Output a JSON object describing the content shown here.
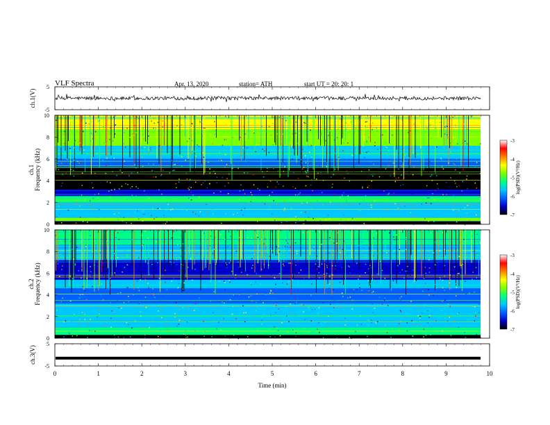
{
  "header": {
    "title": "VLF  Spectra",
    "date": "Apr. 13, 2020",
    "station": "station= ATH",
    "start": "start  UT  =    20: 20: 1"
  },
  "colors": {
    "spectrogram_base": "#00007a",
    "colormap": [
      "#000000",
      "#0000c8",
      "#0060ff",
      "#00c8ff",
      "#00ff80",
      "#80ff00",
      "#ffff00",
      "#ff8000",
      "#ff0000",
      "#ffffff"
    ]
  },
  "chart_data": [
    {
      "type": "line",
      "ylabel": "ch.1(V)",
      "ylim": [
        -5,
        5
      ],
      "yticks": [
        "5",
        "-5"
      ],
      "series": [
        {
          "style": "noise waveform",
          "mean": 0,
          "amplitude": 1
        }
      ]
    },
    {
      "type": "heatmap",
      "ylabel_line1": "ch.1",
      "ylabel_line2": "Frequency  (kHz)",
      "ylim": [
        0,
        10
      ],
      "yticks": [
        "0",
        "2",
        "4",
        "6",
        "8",
        "10"
      ],
      "xlim": [
        0,
        10
      ],
      "colorbar": {
        "label": "log(PSD)(V²/Hz)",
        "range": [
          -7,
          -3
        ],
        "ticks": [
          "-3",
          "-4",
          "-5",
          "-6",
          "-7"
        ]
      },
      "bands": [
        {
          "f0": 0.0,
          "f1": 0.3,
          "level": -6.8
        },
        {
          "f0": 0.3,
          "f1": 0.6,
          "level": -4.6
        },
        {
          "f0": 0.6,
          "f1": 2.0,
          "level": -5.6
        },
        {
          "f0": 2.0,
          "f1": 2.6,
          "level": -5.2
        },
        {
          "f0": 2.6,
          "f1": 3.2,
          "level": -6.3
        },
        {
          "f0": 3.2,
          "f1": 5.2,
          "level": -6.9
        },
        {
          "f0": 5.2,
          "f1": 6.0,
          "level": -6.0
        },
        {
          "f0": 6.0,
          "f1": 7.2,
          "level": -5.3
        },
        {
          "f0": 7.2,
          "f1": 8.7,
          "level": -4.6
        },
        {
          "f0": 8.7,
          "f1": 10.0,
          "level": -4.1
        }
      ]
    },
    {
      "type": "heatmap",
      "ylabel_line1": "ch.2",
      "ylabel_line2": "Frequency  (kHz)",
      "ylim": [
        0,
        10
      ],
      "yticks": [
        "0",
        "2",
        "4",
        "6",
        "8",
        "10"
      ],
      "xlim": [
        0,
        10
      ],
      "colorbar": {
        "label": "log(PSD)(V²/Hz)",
        "range": [
          -7,
          -3
        ],
        "ticks": [
          "-3",
          "-4",
          "-5",
          "-6",
          "-7"
        ]
      },
      "bands": [
        {
          "f0": 0.0,
          "f1": 0.3,
          "level": -6.8
        },
        {
          "f0": 0.3,
          "f1": 1.0,
          "level": -4.8
        },
        {
          "f0": 1.0,
          "f1": 2.0,
          "level": -5.4
        },
        {
          "f0": 2.0,
          "f1": 3.2,
          "level": -5.4
        },
        {
          "f0": 3.2,
          "f1": 4.6,
          "level": -5.9
        },
        {
          "f0": 4.6,
          "f1": 5.4,
          "level": -5.5
        },
        {
          "f0": 5.4,
          "f1": 7.2,
          "level": -6.4
        },
        {
          "f0": 7.2,
          "f1": 8.6,
          "level": -5.6
        },
        {
          "f0": 8.6,
          "f1": 10.0,
          "level": -5.0
        }
      ]
    },
    {
      "type": "line",
      "ylabel": "ch.3(V)",
      "ylim": [
        -5,
        5
      ],
      "yticks": [
        "5",
        "-5"
      ],
      "xlabel": "Time  (min)",
      "xlim": [
        0,
        10
      ],
      "xticks": [
        "0",
        "1",
        "2",
        "3",
        "4",
        "5",
        "6",
        "7",
        "8",
        "9",
        "10"
      ],
      "series": [
        {
          "style": "thick flat line",
          "mean": -1.5,
          "amplitude": 0.3
        }
      ]
    }
  ]
}
